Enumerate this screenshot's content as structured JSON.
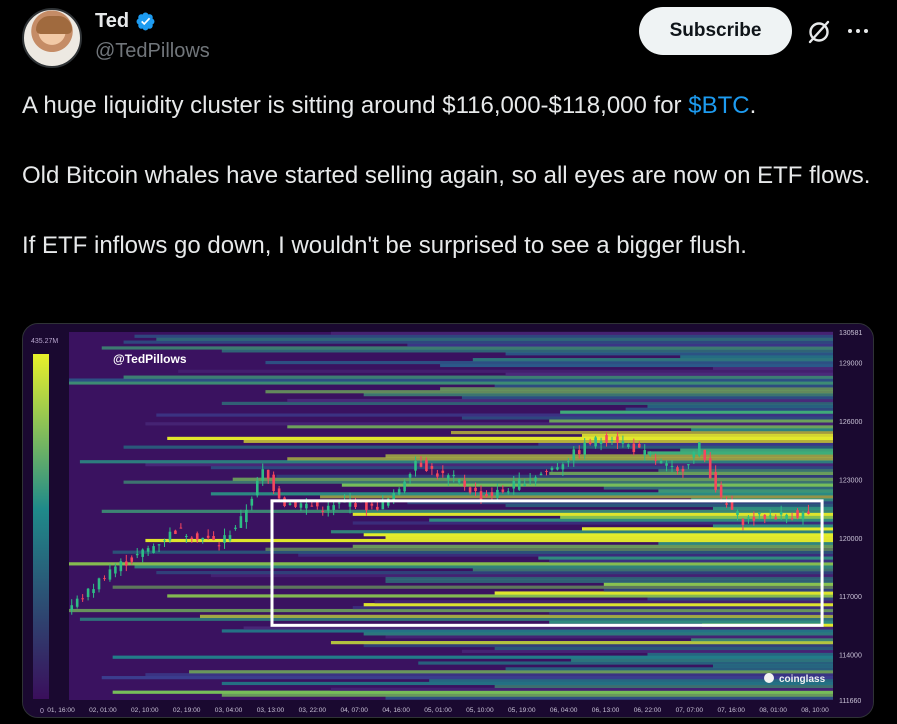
{
  "author": {
    "name": "Ted",
    "handle": "@TedPillows",
    "verified": true,
    "verified_color": "#1d9bf0"
  },
  "actions": {
    "subscribe_label": "Subscribe",
    "grok_icon": "grok-icon",
    "more_icon": "more-icon"
  },
  "tweet": {
    "line1_prefix": "A huge liquidity cluster is sitting around $116,000-$118,000 for ",
    "cashtag": "$BTC",
    "line1_suffix": ".",
    "line2": "Old Bitcoin whales have started selling again, so all eyes are now on ETF flows.",
    "line3": "If ETF inflows go down, I wouldn't be surprised to see a bigger flush."
  },
  "chart_data": {
    "type": "heatmap",
    "watermark": "@TedPillows",
    "brand": "coinglass",
    "colorbar": {
      "max_label": "435.27M",
      "min_label": "0"
    },
    "y_ticks": [
      130581,
      129000,
      126000,
      123000,
      120000,
      117000,
      114000,
      111660
    ],
    "x_ticks": [
      "01, 16:00",
      "02, 01:00",
      "02, 10:00",
      "02, 19:00",
      "03, 04:00",
      "03, 13:00",
      "03, 22:00",
      "04, 07:00",
      "04, 16:00",
      "05, 01:00",
      "05, 10:00",
      "05, 19:00",
      "06, 04:00",
      "06, 13:00",
      "06, 22:00",
      "07, 07:00",
      "07, 16:00",
      "08, 01:00",
      "08, 10:00"
    ],
    "ylim": [
      111660,
      130581
    ],
    "price": [
      [
        0,
        116300
      ],
      [
        2,
        117200
      ],
      [
        4,
        118400
      ],
      [
        6,
        118900
      ],
      [
        8,
        119600
      ],
      [
        10,
        120400
      ],
      [
        12,
        120100
      ],
      [
        14,
        119700
      ],
      [
        16,
        120900
      ],
      [
        18,
        123400
      ],
      [
        20,
        121800
      ],
      [
        22,
        121700
      ],
      [
        24,
        121500
      ],
      [
        26,
        121900
      ],
      [
        28,
        121500
      ],
      [
        30,
        122100
      ],
      [
        32,
        124000
      ],
      [
        34,
        123300
      ],
      [
        36,
        122900
      ],
      [
        38,
        122100
      ],
      [
        40,
        122400
      ],
      [
        42,
        123000
      ],
      [
        44,
        123400
      ],
      [
        46,
        124100
      ],
      [
        48,
        124900
      ],
      [
        50,
        125200
      ],
      [
        52,
        124600
      ],
      [
        54,
        124000
      ],
      [
        56,
        123300
      ],
      [
        58,
        124700
      ],
      [
        60,
        121900
      ],
      [
        62,
        120900
      ],
      [
        64,
        121100
      ],
      [
        66,
        121200
      ],
      [
        68,
        121200
      ]
    ],
    "highlight_box": {
      "price_low": 115500,
      "price_high": 121900
    },
    "colors": {
      "low": "#3a0f5c",
      "mid": "#1f8a8a",
      "high": "#e8f02a",
      "price_up": "#2ebd85",
      "price_down": "#f6465d",
      "box": "#ffffff"
    }
  }
}
